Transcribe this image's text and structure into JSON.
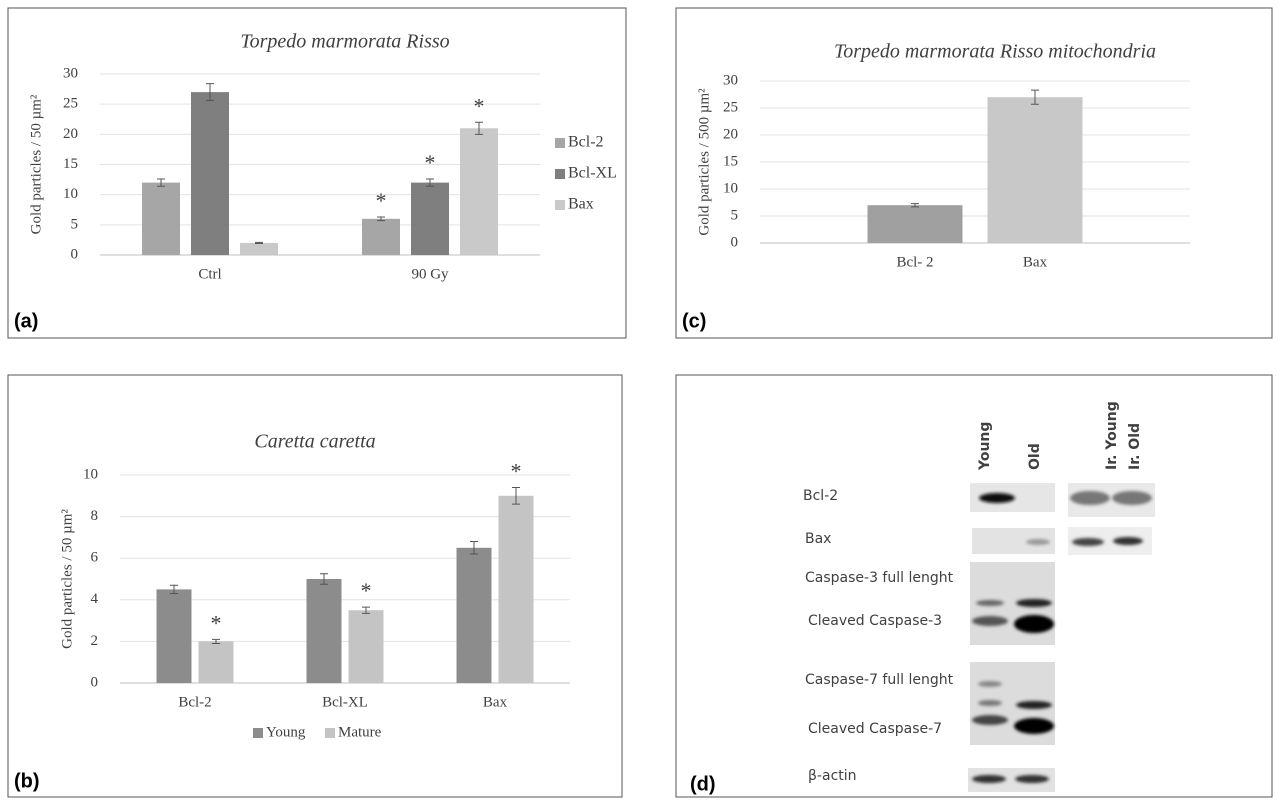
{
  "chart_data": [
    {
      "type": "bar",
      "panel_label": "(a)",
      "title": "Torpedo marmorata Risso",
      "y_label": "Gold particles / 50 µm²",
      "categories": [
        "Ctrl",
        "90 Gy"
      ],
      "series": [
        {
          "name": "Bcl-2",
          "color": "#a6a6a6",
          "values": [
            12,
            6
          ],
          "errors": [
            0.6,
            0.3
          ],
          "markers": [
            null,
            "*"
          ]
        },
        {
          "name": "Bcl-XL",
          "color": "#7f7f7f",
          "values": [
            27,
            12
          ],
          "errors": [
            1.4,
            0.6
          ],
          "markers": [
            null,
            "*"
          ]
        },
        {
          "name": "Bax",
          "color": "#c9c9c9",
          "values": [
            2,
            21
          ],
          "errors": [
            0.1,
            1
          ],
          "markers": [
            null,
            "*"
          ]
        }
      ],
      "ylim": [
        0,
        30
      ],
      "yticks": [
        0,
        5,
        10,
        15,
        20,
        25,
        30
      ],
      "grid": true,
      "legend": "right"
    },
    {
      "type": "bar",
      "panel_label": "(b)",
      "title": "Caretta caretta",
      "y_label": "Gold particles / 50 µm²",
      "categories": [
        "Bcl-2",
        "Bcl-XL",
        "Bax"
      ],
      "series": [
        {
          "name": "Young",
          "color": "#8c8c8c",
          "values": [
            4.5,
            5,
            6.5
          ],
          "errors": [
            0.2,
            0.25,
            0.3
          ],
          "markers": [
            null,
            null,
            null
          ]
        },
        {
          "name": "Mature",
          "color": "#c4c4c4",
          "values": [
            2,
            3.5,
            9
          ],
          "errors": [
            0.1,
            0.15,
            0.4
          ],
          "markers": [
            "*",
            "*",
            "*"
          ]
        }
      ],
      "ylim": [
        0,
        10
      ],
      "yticks": [
        0,
        2,
        4,
        6,
        8,
        10
      ],
      "grid": true,
      "legend": "bottom"
    },
    {
      "type": "bar",
      "panel_label": "(c)",
      "title": "Torpedo marmorata Risso mitochondria",
      "y_label": "Gold particles / 500 µm²",
      "categories": [
        "Bcl- 2",
        "Bax"
      ],
      "values": [
        7,
        27
      ],
      "errors": [
        0.3,
        1.3
      ],
      "colors": [
        "#a0a0a0",
        "#c8c8c8"
      ],
      "ylim": [
        0,
        30
      ],
      "yticks": [
        0,
        5,
        10,
        15,
        20,
        25,
        30
      ],
      "grid": true
    }
  ],
  "blot": {
    "panel_label": "(d)",
    "lanes": [
      "Young",
      "Old",
      "Ir. Young",
      "Ir. Old"
    ],
    "rows": [
      "Bcl-2",
      "Bax",
      "Caspase-3 full lenght",
      "Cleaved Caspase-3",
      "Caspase-7 full lenght",
      "Cleaved Caspase-7",
      "β-actin"
    ]
  }
}
